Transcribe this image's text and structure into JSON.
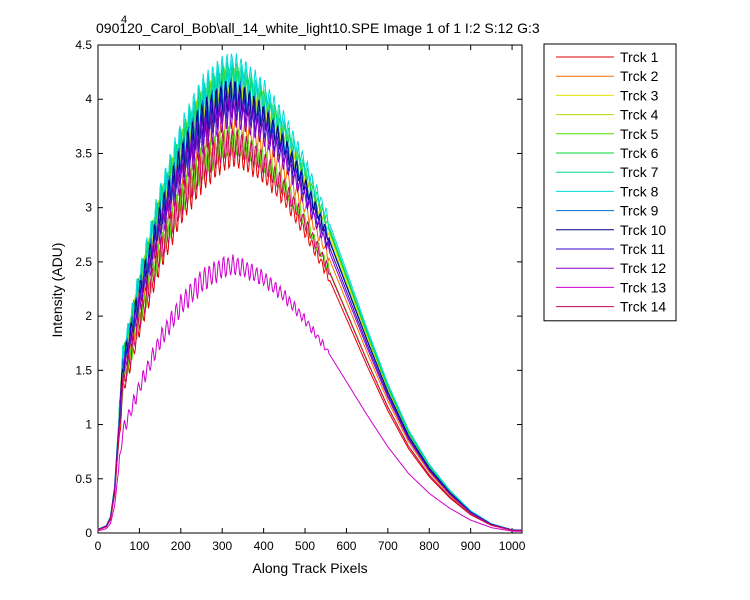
{
  "chart_data": {
    "type": "line",
    "title": "090120_Carol_Bob\\all_14_white_light10.SPE  Image 1 of 1  I:2  S:12  G:3",
    "exponent_label": "4",
    "xlabel": "Along Track Pixels",
    "ylabel": "Intensity (ADU)",
    "xlim": [
      0,
      1024
    ],
    "ylim": [
      0,
      4.5
    ],
    "x_ticks": [
      0,
      100,
      200,
      300,
      400,
      500,
      600,
      700,
      800,
      900,
      1000
    ],
    "y_ticks": [
      0,
      0.5,
      1,
      1.5,
      2,
      2.5,
      3,
      3.5,
      4,
      4.5
    ],
    "grid": false,
    "legend_position": "outside-right",
    "profile_x": [
      0,
      20,
      30,
      40,
      50,
      60,
      80,
      100,
      150,
      200,
      250,
      300,
      325,
      350,
      400,
      450,
      500,
      550,
      600,
      650,
      700,
      750,
      800,
      850,
      900,
      950,
      1000,
      1024
    ],
    "profile_shape": [
      0.008,
      0.016,
      0.035,
      0.1,
      0.24,
      0.38,
      0.46,
      0.545,
      0.72,
      0.85,
      0.94,
      0.99,
      1.0,
      0.99,
      0.95,
      0.885,
      0.795,
      0.69,
      0.565,
      0.44,
      0.322,
      0.222,
      0.148,
      0.092,
      0.048,
      0.02,
      0.007,
      0.006
    ],
    "series": [
      {
        "name": "Trck 1",
        "peak": 3.5,
        "color": "#e00000"
      },
      {
        "name": "Trck 2",
        "peak": 3.78,
        "color": "#ff6a00"
      },
      {
        "name": "Trck 3",
        "peak": 4.1,
        "color": "#e6e600"
      },
      {
        "name": "Trck 4",
        "peak": 4.15,
        "color": "#b0dc00"
      },
      {
        "name": "Trck 5",
        "peak": 3.62,
        "color": "#55dd00"
      },
      {
        "name": "Trck 6",
        "peak": 4.18,
        "color": "#00d830"
      },
      {
        "name": "Trck 7",
        "peak": 4.22,
        "color": "#00d890"
      },
      {
        "name": "Trck 8",
        "peak": 4.28,
        "color": "#00dcdc"
      },
      {
        "name": "Trck 9",
        "peak": 4.05,
        "color": "#0070d8"
      },
      {
        "name": "Trck 10",
        "peak": 4.03,
        "color": "#000080"
      },
      {
        "name": "Trck 11",
        "peak": 3.95,
        "color": "#3000d0"
      },
      {
        "name": "Trck 12",
        "peak": 3.88,
        "color": "#8800c8"
      },
      {
        "name": "Trck 13",
        "peak": 2.47,
        "color": "#d000d0"
      },
      {
        "name": "Trck 14",
        "peak": 3.6,
        "color": "#d00060"
      }
    ]
  }
}
